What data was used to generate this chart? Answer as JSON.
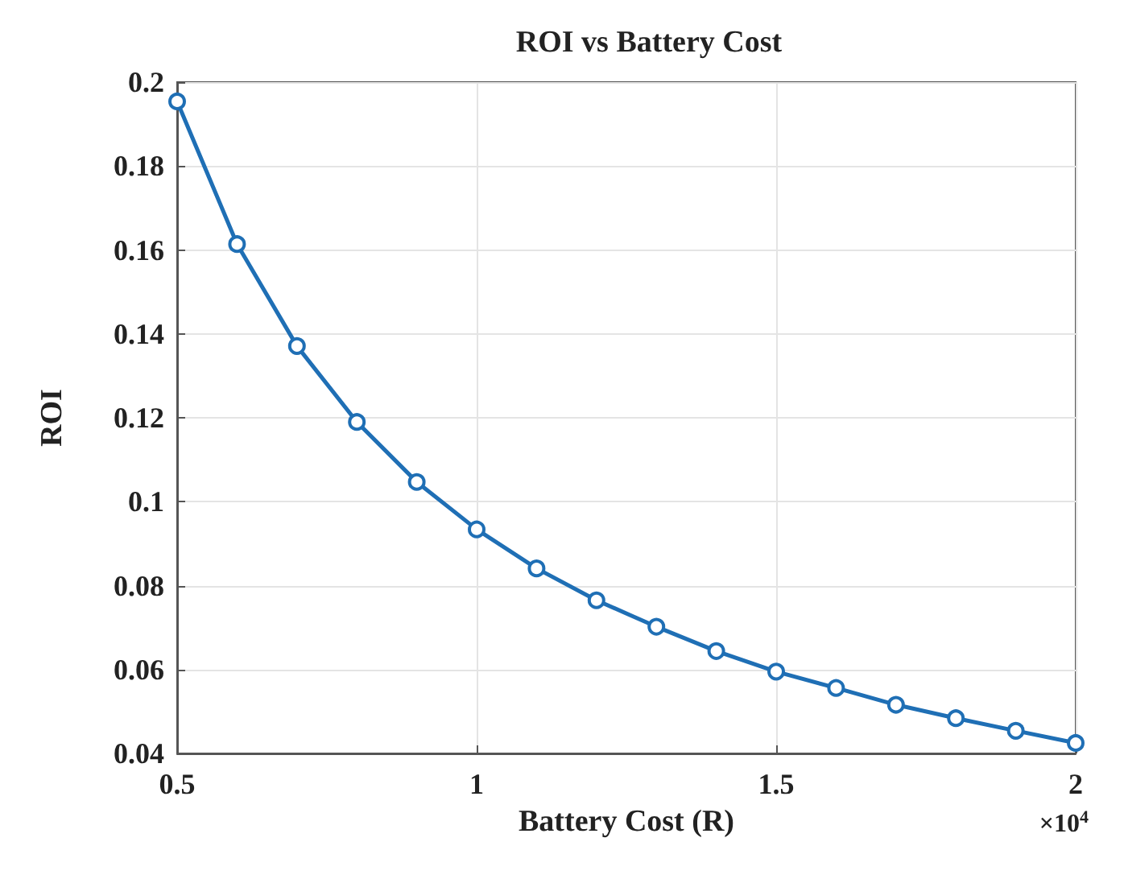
{
  "chart_data": {
    "type": "line",
    "title": "ROI vs Battery Cost",
    "xlabel": "Battery Cost (R)",
    "ylabel": "ROI",
    "annotations": [
      "×10$^{4}$"
    ],
    "x": [
      0.5,
      0.6,
      0.7,
      0.8,
      0.9,
      1.0,
      1.1,
      1.2,
      1.3,
      1.4,
      1.5,
      1.6,
      1.7,
      1.8,
      1.9,
      2.0
    ],
    "series": [
      {
        "color": "#1f6fb5",
        "values": [
          0.1954,
          0.1614,
          0.1371,
          0.119,
          0.1047,
          0.0934,
          0.0841,
          0.0765,
          0.0702,
          0.0644,
          0.0595,
          0.0556,
          0.0516,
          0.0484,
          0.0454,
          0.0425
        ]
      }
    ],
    "xlim": [
      0.5,
      2
    ],
    "xticks": [
      0.5,
      1,
      1.5,
      2
    ],
    "ylim": [
      0.04,
      0.2
    ],
    "yticks": [
      0.04,
      0.06,
      0.08,
      0.1,
      0.12,
      0.14,
      0.16,
      0.18,
      0.2
    ],
    "grid": true,
    "marker": "circle",
    "line_style": "solid"
  }
}
